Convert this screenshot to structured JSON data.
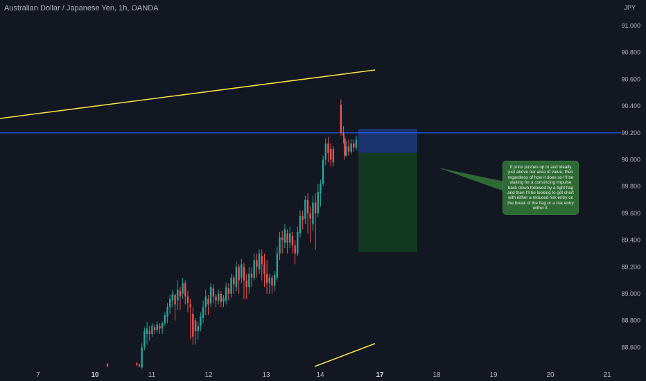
{
  "header": {
    "title": "Australian Dollar / Japanese Yen, 1h, OANDA",
    "currency": "JPY"
  },
  "annotation": {
    "text": "If price pushes up to and ideally just above our area of value, then regardless of how it does so I'll be waiting for a convincing impulse back down followed by a tight flag and then I'll be looking to get short with either a reduced risk entry on the break of the flag or a risk entry within it."
  },
  "colors": {
    "background": "#131722",
    "up": "#26a69a",
    "down": "#ef5350",
    "trendline": "#f5e04a",
    "level": "#2962ff",
    "stop_zone": "#1e3a7a",
    "target_zone": "#123a22",
    "note_bg": "#2e6b34",
    "axis_text": "#b2b5be"
  },
  "chart_data": {
    "type": "candlestick",
    "title": "Australian Dollar / Japanese Yen, 1h, OANDA",
    "y_unit": "JPY",
    "ylim": [
      88.4,
      91.2
    ],
    "y_ticks": [
      "91.000",
      "90.800",
      "90.600",
      "90.400",
      "90.200",
      "90.000",
      "89.800",
      "89.600",
      "89.400",
      "89.200",
      "89.000",
      "88.800",
      "88.600"
    ],
    "x_ticks": [
      "7",
      "10",
      "11",
      "12",
      "13",
      "14",
      "17",
      "18",
      "19",
      "20",
      "21"
    ],
    "x_tick_days": [
      7,
      10,
      11,
      12,
      13,
      14,
      17,
      18,
      19,
      20,
      21
    ],
    "bold_ticks": [
      "10",
      "17"
    ],
    "grid": false,
    "horizontal_level": 90.2,
    "trendlines": [
      {
        "from": [
          6.0,
          90.51
        ],
        "to": [
          14.95,
          90.68
        ]
      },
      {
        "from": [
          13.9,
          88.43
        ],
        "to": [
          14.95,
          88.62
        ]
      }
    ],
    "short_position": {
      "x_start": 14.65,
      "x_end": 17.55,
      "stop": 90.23,
      "entry": 90.05,
      "target": 89.31
    },
    "candles": [
      [
        10.25,
        88.48,
        88.46,
        88.45,
        88.47
      ],
      [
        11.4,
        88.48,
        88.47,
        88.46,
        88.49
      ],
      [
        11.5,
        88.47,
        88.46,
        88.45,
        88.48
      ],
      [
        11.6,
        88.45,
        88.6,
        88.44,
        88.63
      ],
      [
        11.7,
        88.6,
        88.72,
        88.58,
        88.75
      ],
      [
        11.8,
        88.7,
        88.74,
        88.62,
        88.79
      ],
      [
        11.9,
        88.72,
        88.7,
        88.65,
        88.76
      ],
      [
        12.0,
        88.7,
        88.76,
        88.68,
        88.78
      ],
      [
        12.1,
        88.75,
        88.73,
        88.7,
        88.77
      ],
      [
        12.2,
        88.73,
        88.77,
        88.71,
        88.79
      ],
      [
        12.3,
        88.76,
        88.74,
        88.7,
        88.78
      ],
      [
        12.4,
        88.74,
        88.78,
        88.7,
        88.79
      ],
      [
        12.5,
        88.78,
        88.84,
        88.76,
        88.86
      ],
      [
        12.6,
        88.83,
        88.9,
        88.78,
        88.93
      ],
      [
        12.7,
        88.9,
        88.96,
        88.85,
        88.99
      ],
      [
        12.8,
        88.95,
        89.0,
        88.9,
        89.03
      ],
      [
        12.9,
        88.99,
        88.92,
        88.8,
        89.0
      ],
      [
        13.0,
        88.95,
        89.03,
        88.88,
        89.1
      ],
      [
        13.1,
        89.02,
        88.98,
        88.88,
        89.05
      ],
      [
        13.2,
        89.0,
        89.08,
        88.96,
        89.12
      ],
      [
        13.3,
        89.08,
        88.98,
        88.92,
        89.1
      ],
      [
        13.4,
        88.98,
        88.93,
        88.86,
        89.02
      ],
      [
        13.5,
        88.92,
        88.9,
        88.66,
        88.96
      ],
      [
        13.6,
        88.85,
        88.68,
        88.62,
        88.9
      ],
      [
        13.7,
        88.8,
        88.72,
        88.62,
        88.82
      ],
      [
        13.8,
        88.72,
        88.76,
        88.66,
        88.79
      ],
      [
        13.9,
        88.76,
        88.83,
        88.72,
        88.86
      ],
      [
        14.0,
        88.82,
        88.9,
        88.78,
        88.95
      ],
      [
        14.1,
        88.9,
        88.98,
        88.84,
        89.03
      ],
      [
        14.2,
        88.96,
        88.92,
        88.84,
        88.99
      ],
      [
        14.3,
        88.93,
        89.05,
        88.9,
        89.08
      ],
      [
        14.4,
        89.04,
        88.98,
        88.93,
        89.07
      ],
      [
        14.5,
        88.98,
        88.95,
        88.9,
        89.0
      ],
      [
        14.6,
        88.95,
        89.0,
        88.92,
        89.03
      ],
      [
        14.7,
        89.0,
        88.94,
        88.9,
        89.02
      ],
      [
        14.8,
        88.94,
        88.97,
        88.9,
        88.99
      ],
      [
        14.9,
        88.95,
        89.05,
        88.92,
        89.08
      ],
      [
        15.0,
        89.04,
        89.0,
        88.95,
        89.08
      ],
      [
        15.1,
        89.0,
        89.12,
        88.97,
        89.15
      ],
      [
        15.2,
        89.12,
        89.07,
        89.0,
        89.14
      ],
      [
        15.3,
        89.05,
        89.2,
        89.02,
        89.24
      ],
      [
        15.4,
        89.2,
        89.1,
        89.0,
        89.22
      ],
      [
        15.5,
        89.12,
        89.22,
        89.08,
        89.26
      ],
      [
        15.6,
        89.2,
        89.1,
        88.96,
        89.23
      ],
      [
        15.7,
        89.1,
        89.05,
        88.96,
        89.15
      ],
      [
        15.8,
        89.05,
        89.15,
        89.0,
        89.2
      ],
      [
        15.9,
        89.15,
        89.12,
        89.05,
        89.2
      ],
      [
        16.0,
        89.12,
        89.25,
        89.1,
        89.3
      ],
      [
        16.1,
        89.25,
        89.2,
        89.12,
        89.3
      ],
      [
        16.2,
        89.18,
        89.3,
        89.15,
        89.33
      ],
      [
        16.3,
        89.28,
        89.22,
        89.1,
        89.33
      ],
      [
        16.4,
        89.22,
        89.15,
        89.05,
        89.3
      ],
      [
        16.5,
        89.15,
        89.08,
        89.0,
        89.25
      ],
      [
        16.6,
        89.08,
        89.12,
        89.0,
        89.15
      ],
      [
        16.7,
        89.12,
        89.06,
        89.0,
        89.14
      ],
      [
        16.8,
        89.06,
        89.14,
        89.02,
        89.17
      ],
      [
        16.9,
        89.12,
        89.3,
        89.1,
        89.35
      ],
      [
        17.0,
        89.3,
        89.42,
        89.25,
        89.46
      ],
      [
        17.1,
        89.42,
        89.4,
        89.3,
        89.47
      ],
      [
        17.2,
        89.38,
        89.48,
        89.34,
        89.52
      ],
      [
        17.3,
        89.45,
        89.38,
        89.3,
        89.48
      ],
      [
        17.4,
        89.38,
        89.45,
        89.34,
        89.5
      ],
      [
        17.5,
        89.43,
        89.36,
        89.3,
        89.46
      ],
      [
        17.6,
        89.36,
        89.3,
        89.22,
        89.4
      ],
      [
        17.7,
        89.3,
        89.46,
        89.28,
        89.5
      ],
      [
        17.8,
        89.45,
        89.58,
        89.42,
        89.62
      ],
      [
        17.9,
        89.58,
        89.55,
        89.48,
        89.62
      ],
      [
        18.0,
        89.56,
        89.7,
        89.52,
        89.73
      ],
      [
        18.1,
        89.7,
        89.6,
        89.45,
        89.75
      ],
      [
        18.2,
        89.6,
        89.56,
        89.38,
        89.65
      ],
      [
        18.3,
        89.52,
        89.68,
        89.47,
        89.73
      ],
      [
        18.4,
        89.68,
        89.6,
        89.33,
        89.75
      ],
      [
        18.5,
        89.6,
        89.76,
        89.57,
        89.82
      ],
      [
        18.6,
        89.75,
        89.82,
        89.65,
        89.85
      ],
      [
        18.7,
        89.82,
        90.0,
        89.8,
        90.03
      ],
      [
        18.8,
        90.0,
        90.12,
        89.96,
        90.16
      ],
      [
        18.9,
        90.12,
        90.05,
        89.98,
        90.17
      ],
      [
        19.0,
        90.08,
        90.0,
        89.95,
        90.12
      ],
      [
        19.1,
        90.08,
        89.98,
        89.95,
        90.1
      ],
      [
        19.4,
        90.41,
        90.2,
        90.18,
        90.45
      ],
      [
        19.5,
        90.2,
        90.18,
        90.12,
        90.25
      ],
      [
        19.55,
        90.16,
        90.03,
        90.0,
        90.18
      ],
      [
        19.6,
        90.03,
        90.1,
        90.02,
        90.14
      ],
      [
        19.7,
        90.1,
        90.06,
        90.03,
        90.15
      ],
      [
        19.8,
        90.06,
        90.12,
        90.04,
        90.15
      ],
      [
        19.9,
        90.12,
        90.09,
        90.06,
        90.15
      ],
      [
        20.0,
        90.09,
        90.15,
        90.07,
        90.18
      ]
    ]
  }
}
